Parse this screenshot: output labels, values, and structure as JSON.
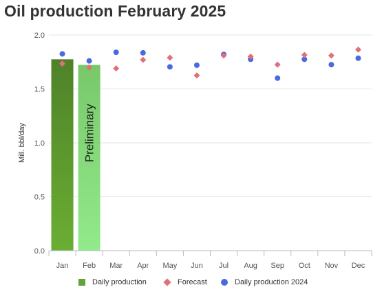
{
  "title": "Oil production February 2025",
  "chart_data": {
    "type": "bar",
    "categories": [
      "Jan",
      "Feb",
      "Mar",
      "Apr",
      "May",
      "Jun",
      "Jul",
      "Aug",
      "Sep",
      "Oct",
      "Nov",
      "Dec"
    ],
    "ylabel": "Mill. bbl/day",
    "ylim": [
      0,
      2.0
    ],
    "yticks": [
      "0.0",
      "0.5",
      "1.0",
      "1.5",
      "2.0"
    ],
    "ytick_values": [
      0,
      0.5,
      1.0,
      1.5,
      2.0
    ],
    "grid": true,
    "legend_position": "bottom",
    "bar_annotation": "Preliminary",
    "series": [
      {
        "name": "Daily production",
        "kind": "bar",
        "values": [
          1.775,
          1.723,
          null,
          null,
          null,
          null,
          null,
          null,
          null,
          null,
          null,
          null
        ],
        "colors": [
          "#5a922c",
          "#86d97a"
        ]
      },
      {
        "name": "Forecast",
        "kind": "diamond",
        "color": "#e0707a",
        "values": [
          1.735,
          1.7,
          1.69,
          1.77,
          1.79,
          1.625,
          1.81,
          1.8,
          1.725,
          1.815,
          1.81,
          1.865
        ]
      },
      {
        "name": "Daily production 2024",
        "kind": "circle",
        "color": "#4a6ae0",
        "values": [
          1.825,
          1.76,
          1.84,
          1.835,
          1.705,
          1.72,
          1.82,
          1.775,
          1.6,
          1.775,
          1.725,
          1.785
        ]
      }
    ]
  },
  "legend": {
    "bar_label": "Daily production",
    "forecast_label": "Forecast",
    "prod2024_label": "Daily production 2024",
    "bar_color": "#62a33a",
    "forecast_color": "#e0707a",
    "prod2024_color": "#4a6ae0"
  }
}
